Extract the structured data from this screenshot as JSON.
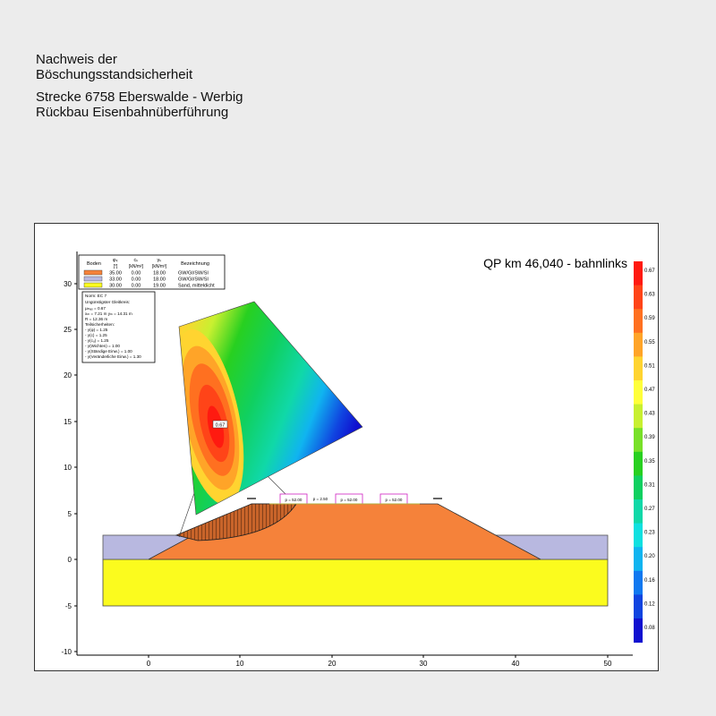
{
  "header": {
    "line1": "Nachweis der",
    "line2": "Böschungsstandsicherheit",
    "line3": "Strecke 6758 Eberswalde - Werbig",
    "line4": "Rückbau Eisenbahnüberführung"
  },
  "plot": {
    "section_label": "QP km 46,040 - bahnlinks",
    "x_ticks": [
      "0",
      "10",
      "20",
      "30",
      "40",
      "50"
    ],
    "y_ticks": [
      "30",
      "25",
      "20",
      "15",
      "10",
      "5",
      "0",
      "-5",
      "-10"
    ],
    "center_label": "0.67"
  },
  "soil_table": {
    "headers": [
      "Boden",
      "φₖ",
      "cₖ",
      "γₖ",
      "Bezeichnung"
    ],
    "units": [
      "",
      "[°]",
      "[kN/m²]",
      "[kN/m³]",
      ""
    ],
    "rows": [
      {
        "color": "#f5823a",
        "phi": "35.00",
        "c": "0.00",
        "gamma": "18.00",
        "name": "GW/GI/SW/SI"
      },
      {
        "color": "#b8b8e0",
        "phi": "33.00",
        "c": "0.00",
        "gamma": "18.00",
        "name": "GW/GI/SW/SI"
      },
      {
        "color": "#fbfb1e",
        "phi": "30.00",
        "c": "0.00",
        "gamma": "19.00",
        "name": "Sand, mitteldicht"
      }
    ]
  },
  "info_box": {
    "lines": [
      "Norm: EC 7",
      "Ungünstigster Gleitkreis:",
      "μₘₐₓ = 0.67",
      "xₘ = 7.21 m   yₘ = 14.31 m",
      "R = 12.36 m",
      "Teilsicherheiten:",
      "- γ(φ) = 1.25",
      "- γ(c) = 1.25",
      "- γ(cᵤ) = 1.25",
      "- γ(Wichten) = 1.00",
      "- γ(Ständige Einw.) = 1.00",
      "- γ(Veränderliche Einw.) = 1.30"
    ]
  },
  "loads": {
    "load1": "p = 52.00",
    "load2": "p = 2.50",
    "load3": "p = 52.00",
    "load4": "p = 52.00"
  },
  "color_scale": {
    "labels": [
      "0.67",
      "0.63",
      "0.59",
      "0.55",
      "0.51",
      "0.47",
      "0.43",
      "0.39",
      "0.35",
      "0.31",
      "0.27",
      "0.23",
      "0.20",
      "0.16",
      "0.12",
      "0.08"
    ],
    "colors": [
      "#ff1a10",
      "#ff4418",
      "#ff7020",
      "#ffa428",
      "#ffd430",
      "#ffff3a",
      "#c8f030",
      "#78e028",
      "#28d020",
      "#10d060",
      "#10d8a8",
      "#10e0e0",
      "#10b4f0",
      "#1078f0",
      "#1044e0",
      "#1010d0"
    ]
  },
  "colors": {
    "embankment": "#f5823a",
    "purple_layer": "#b8b8e0",
    "sand_layer": "#fbfb1e"
  }
}
